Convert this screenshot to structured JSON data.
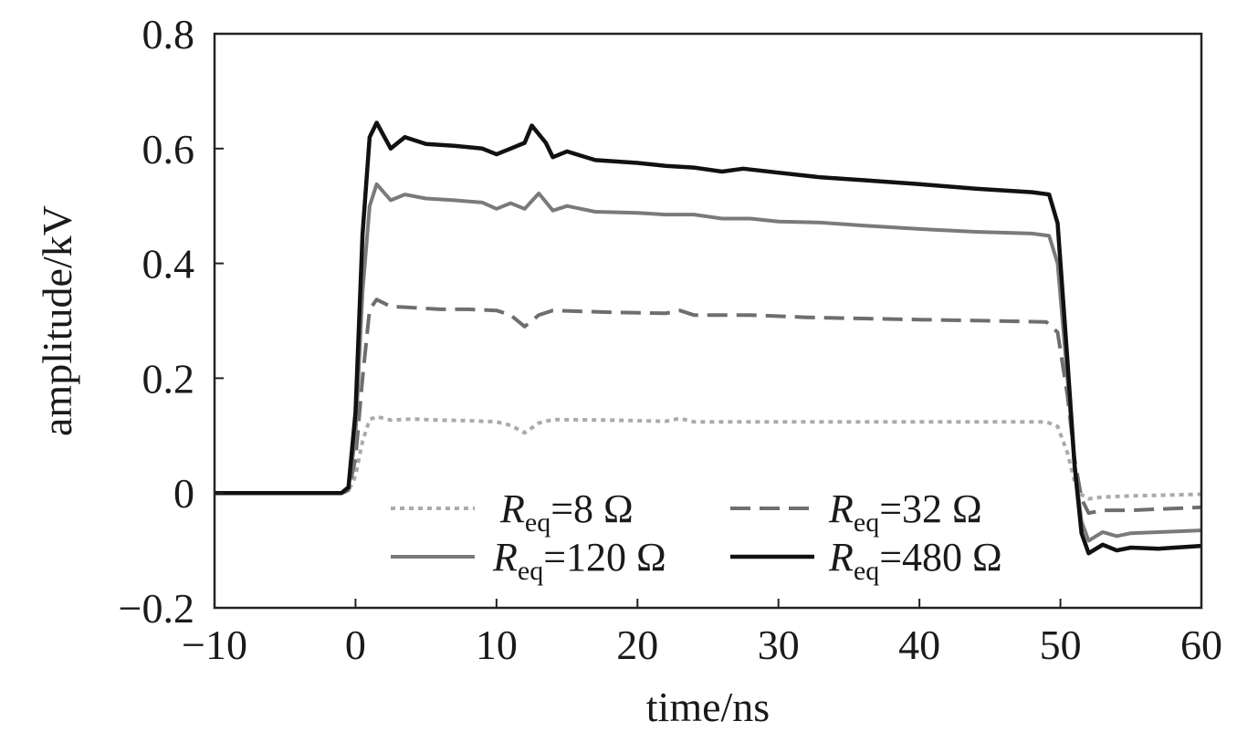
{
  "chart_data": {
    "type": "line",
    "title": "",
    "xlabel": "time/ns",
    "ylabel": "amplitude/kV",
    "xlim": [
      -10,
      60
    ],
    "ylim": [
      -0.2,
      0.8
    ],
    "xticks": [
      -10,
      0,
      10,
      20,
      30,
      40,
      50,
      60
    ],
    "xtick_labels": [
      "−10",
      "0",
      "10",
      "20",
      "30",
      "40",
      "50",
      "60"
    ],
    "yticks": [
      -0.2,
      0,
      0.2,
      0.4,
      0.6,
      0.8
    ],
    "ytick_labels": [
      "−0.2",
      "0",
      "0.2",
      "0.4",
      "0.6",
      "0.8"
    ],
    "grid": false,
    "legend_position": "bottom-center",
    "series": [
      {
        "name": "R_eq=8 Ω",
        "legend_symbol": "R",
        "legend_sub": "eq",
        "legend_value": "=8 Ω",
        "color": "#aaaaaa",
        "dash": "dotted",
        "points": [
          [
            -10,
            0
          ],
          [
            -1,
            0
          ],
          [
            -0.5,
            0.003
          ],
          [
            0,
            0.03
          ],
          [
            0.5,
            0.09
          ],
          [
            1,
            0.128
          ],
          [
            1.5,
            0.133
          ],
          [
            2.5,
            0.127
          ],
          [
            4,
            0.129
          ],
          [
            6,
            0.127
          ],
          [
            8,
            0.126
          ],
          [
            10,
            0.124
          ],
          [
            11,
            0.118
          ],
          [
            12,
            0.105
          ],
          [
            13,
            0.122
          ],
          [
            14,
            0.128
          ],
          [
            18,
            0.127
          ],
          [
            22,
            0.125
          ],
          [
            23,
            0.13
          ],
          [
            24,
            0.124
          ],
          [
            28,
            0.124
          ],
          [
            32,
            0.124
          ],
          [
            36,
            0.124
          ],
          [
            40,
            0.124
          ],
          [
            45,
            0.124
          ],
          [
            49,
            0.124
          ],
          [
            49.8,
            0.116
          ],
          [
            50.5,
            0.07
          ],
          [
            51,
            0.02
          ],
          [
            51.5,
            -0.003
          ],
          [
            52,
            -0.01
          ],
          [
            53,
            -0.007
          ],
          [
            55,
            -0.005
          ],
          [
            57,
            -0.004
          ],
          [
            60,
            -0.002
          ]
        ]
      },
      {
        "name": "R_eq=32 Ω",
        "legend_symbol": "R",
        "legend_sub": "eq",
        "legend_value": "=32 Ω",
        "color": "#6e6e6e",
        "dash": "dashed",
        "points": [
          [
            -10,
            0
          ],
          [
            -1,
            0
          ],
          [
            -0.5,
            0.005
          ],
          [
            0,
            0.06
          ],
          [
            0.5,
            0.2
          ],
          [
            1,
            0.32
          ],
          [
            1.5,
            0.337
          ],
          [
            2.5,
            0.325
          ],
          [
            4,
            0.323
          ],
          [
            6,
            0.32
          ],
          [
            8,
            0.32
          ],
          [
            10,
            0.318
          ],
          [
            11,
            0.31
          ],
          [
            12,
            0.29
          ],
          [
            13,
            0.31
          ],
          [
            14,
            0.318
          ],
          [
            18,
            0.315
          ],
          [
            22,
            0.313
          ],
          [
            23,
            0.318
          ],
          [
            24,
            0.31
          ],
          [
            28,
            0.31
          ],
          [
            32,
            0.306
          ],
          [
            36,
            0.304
          ],
          [
            40,
            0.302
          ],
          [
            45,
            0.3
          ],
          [
            49,
            0.298
          ],
          [
            49.8,
            0.28
          ],
          [
            50.5,
            0.17
          ],
          [
            51,
            0.06
          ],
          [
            51.5,
            -0.01
          ],
          [
            52,
            -0.035
          ],
          [
            53,
            -0.03
          ],
          [
            55,
            -0.03
          ],
          [
            57,
            -0.028
          ],
          [
            60,
            -0.025
          ]
        ]
      },
      {
        "name": "R_eq=120 Ω",
        "legend_symbol": "R",
        "legend_sub": "eq",
        "legend_value": "=120 Ω",
        "color": "#7a7a7a",
        "dash": "solid",
        "points": [
          [
            -10,
            0
          ],
          [
            -1,
            0
          ],
          [
            -0.5,
            0.008
          ],
          [
            0,
            0.1
          ],
          [
            0.5,
            0.35
          ],
          [
            1,
            0.5
          ],
          [
            1.5,
            0.538
          ],
          [
            2.5,
            0.51
          ],
          [
            3.5,
            0.52
          ],
          [
            5,
            0.513
          ],
          [
            7,
            0.51
          ],
          [
            9,
            0.506
          ],
          [
            10,
            0.495
          ],
          [
            11,
            0.505
          ],
          [
            12,
            0.495
          ],
          [
            13,
            0.522
          ],
          [
            14,
            0.492
          ],
          [
            15,
            0.5
          ],
          [
            17,
            0.49
          ],
          [
            20,
            0.488
          ],
          [
            22,
            0.485
          ],
          [
            24,
            0.485
          ],
          [
            26,
            0.478
          ],
          [
            28,
            0.478
          ],
          [
            30,
            0.473
          ],
          [
            33,
            0.471
          ],
          [
            36,
            0.466
          ],
          [
            40,
            0.46
          ],
          [
            44,
            0.455
          ],
          [
            48,
            0.452
          ],
          [
            49.2,
            0.448
          ],
          [
            49.8,
            0.4
          ],
          [
            50.5,
            0.2
          ],
          [
            51,
            0.05
          ],
          [
            51.5,
            -0.05
          ],
          [
            52,
            -0.083
          ],
          [
            53,
            -0.068
          ],
          [
            54,
            -0.075
          ],
          [
            55,
            -0.07
          ],
          [
            57,
            -0.068
          ],
          [
            60,
            -0.065
          ]
        ]
      },
      {
        "name": "R_eq=480 Ω",
        "legend_symbol": "R",
        "legend_sub": "eq",
        "legend_value": "=480 Ω",
        "color": "#111111",
        "dash": "solid",
        "points": [
          [
            -10,
            0
          ],
          [
            -1,
            0
          ],
          [
            -0.5,
            0.01
          ],
          [
            0,
            0.14
          ],
          [
            0.5,
            0.45
          ],
          [
            1,
            0.62
          ],
          [
            1.5,
            0.645
          ],
          [
            2.5,
            0.6
          ],
          [
            3.5,
            0.62
          ],
          [
            5,
            0.608
          ],
          [
            7,
            0.605
          ],
          [
            9,
            0.6
          ],
          [
            10,
            0.59
          ],
          [
            11,
            0.6
          ],
          [
            12,
            0.61
          ],
          [
            12.5,
            0.64
          ],
          [
            13.5,
            0.61
          ],
          [
            14,
            0.585
          ],
          [
            15,
            0.595
          ],
          [
            17,
            0.58
          ],
          [
            20,
            0.575
          ],
          [
            22,
            0.57
          ],
          [
            24,
            0.567
          ],
          [
            26,
            0.56
          ],
          [
            27.5,
            0.565
          ],
          [
            30,
            0.558
          ],
          [
            33,
            0.55
          ],
          [
            36,
            0.545
          ],
          [
            40,
            0.538
          ],
          [
            44,
            0.53
          ],
          [
            48,
            0.524
          ],
          [
            49.2,
            0.52
          ],
          [
            49.8,
            0.47
          ],
          [
            50.5,
            0.23
          ],
          [
            51,
            0.05
          ],
          [
            51.5,
            -0.07
          ],
          [
            52,
            -0.105
          ],
          [
            53,
            -0.09
          ],
          [
            54,
            -0.1
          ],
          [
            55,
            -0.095
          ],
          [
            57,
            -0.097
          ],
          [
            60,
            -0.092
          ]
        ]
      }
    ]
  }
}
